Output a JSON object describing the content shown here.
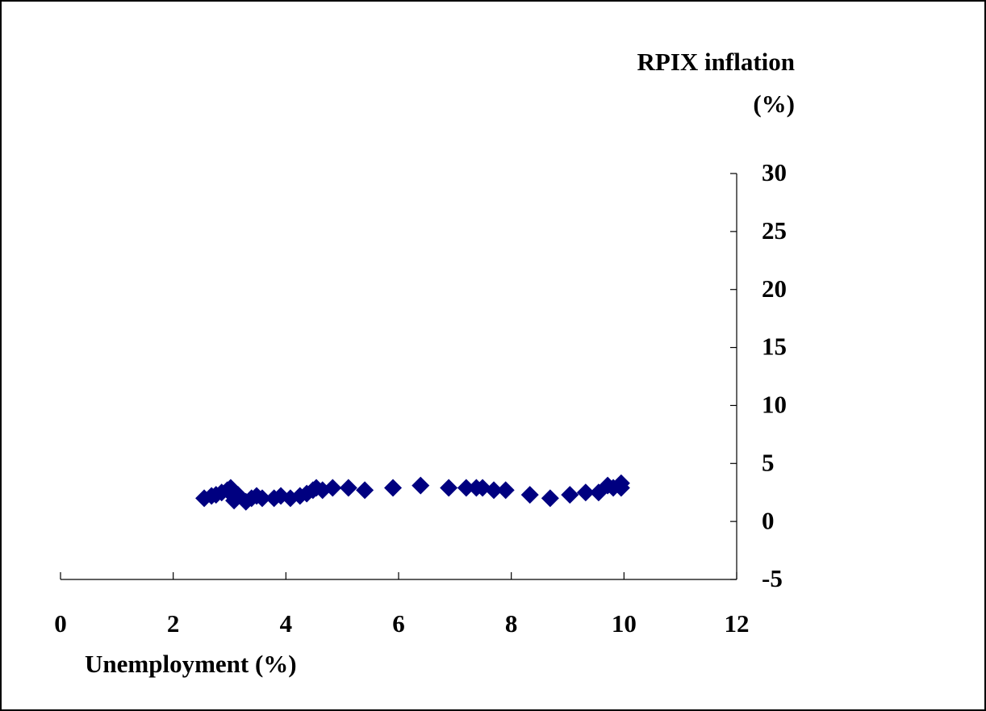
{
  "chart_data": {
    "type": "scatter",
    "y_label_line1": "RPIX inflation",
    "y_label_line2": "(%)",
    "x_label": "Unemployment (%)",
    "xlim": [
      0,
      12
    ],
    "xticks": [
      0,
      2,
      4,
      6,
      8,
      10,
      12
    ],
    "ylim": [
      -5,
      30
    ],
    "yticks": [
      30,
      25,
      20,
      15,
      10,
      5,
      0,
      -5
    ],
    "series": [
      {
        "color": "#000080",
        "x": [
          2.55,
          2.68,
          2.76,
          2.86,
          2.96,
          3.02,
          3.08,
          3.15,
          3.29,
          3.39,
          3.48,
          3.58,
          3.79,
          3.91,
          4.08,
          4.25,
          4.37,
          4.48,
          4.54,
          4.65,
          4.83,
          5.11,
          5.4,
          5.9,
          6.39,
          6.89,
          7.2,
          7.38,
          7.49,
          7.69,
          7.9,
          8.33,
          8.69,
          9.04,
          9.32,
          9.55,
          9.71,
          9.81,
          9.95,
          9.95
        ],
        "values": [
          2.0,
          2.2,
          2.3,
          2.5,
          2.7,
          2.9,
          1.8,
          2.3,
          1.7,
          2.0,
          2.2,
          2.0,
          2.0,
          2.2,
          2.0,
          2.2,
          2.4,
          2.7,
          2.9,
          2.7,
          2.9,
          2.9,
          2.7,
          2.9,
          3.1,
          2.9,
          2.9,
          2.9,
          2.9,
          2.7,
          2.7,
          2.3,
          2.0,
          2.3,
          2.5,
          2.5,
          3.1,
          2.9,
          3.3,
          2.9
        ]
      }
    ]
  }
}
